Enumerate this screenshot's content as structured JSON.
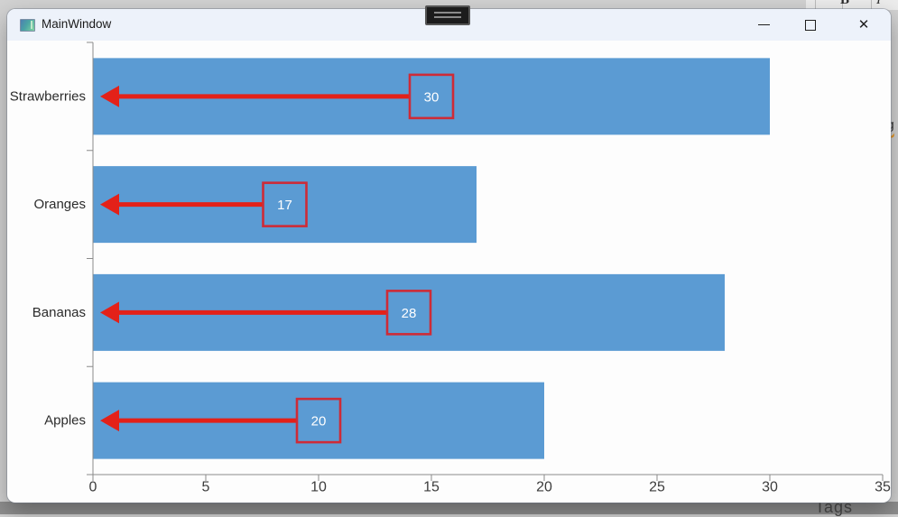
{
  "window": {
    "title": "MainWindow",
    "icons": {
      "minimize": "horizontal-line",
      "maximize": "square-outline",
      "close": "✕"
    }
  },
  "background": {
    "toolbar": {
      "bold_label": "B",
      "italic_label": "I"
    },
    "clipped_text_right": "ng",
    "clipped_text_bottom": "Tags"
  },
  "chart_data": {
    "type": "bar",
    "orientation": "horizontal",
    "title": "",
    "xlabel": "",
    "ylabel": "",
    "categories": [
      "Strawberries",
      "Oranges",
      "Bananas",
      "Apples"
    ],
    "values": [
      30,
      17,
      28,
      20
    ],
    "xlim": [
      0,
      35
    ],
    "x_ticks": [
      0,
      5,
      10,
      15,
      20,
      25,
      30,
      35
    ],
    "grid": false,
    "legend": "none",
    "bar_color": "#5B9BD3",
    "axis_color": "#8A8A8A",
    "tick_label_color": "#3C3C3C",
    "category_label_color": "#2B2B2B",
    "annotation_arrow_color": "#E32119",
    "annotation_box_border_color": "#CE2B37",
    "annotation_text_color": "#FFFFFF",
    "annotations": [
      {
        "category": "Strawberries",
        "label": "30",
        "shape": "left-arrow-with-box"
      },
      {
        "category": "Oranges",
        "label": "17",
        "shape": "left-arrow-with-box"
      },
      {
        "category": "Bananas",
        "label": "28",
        "shape": "left-arrow-with-box"
      },
      {
        "category": "Apples",
        "label": "20",
        "shape": "left-arrow-with-box"
      }
    ]
  }
}
